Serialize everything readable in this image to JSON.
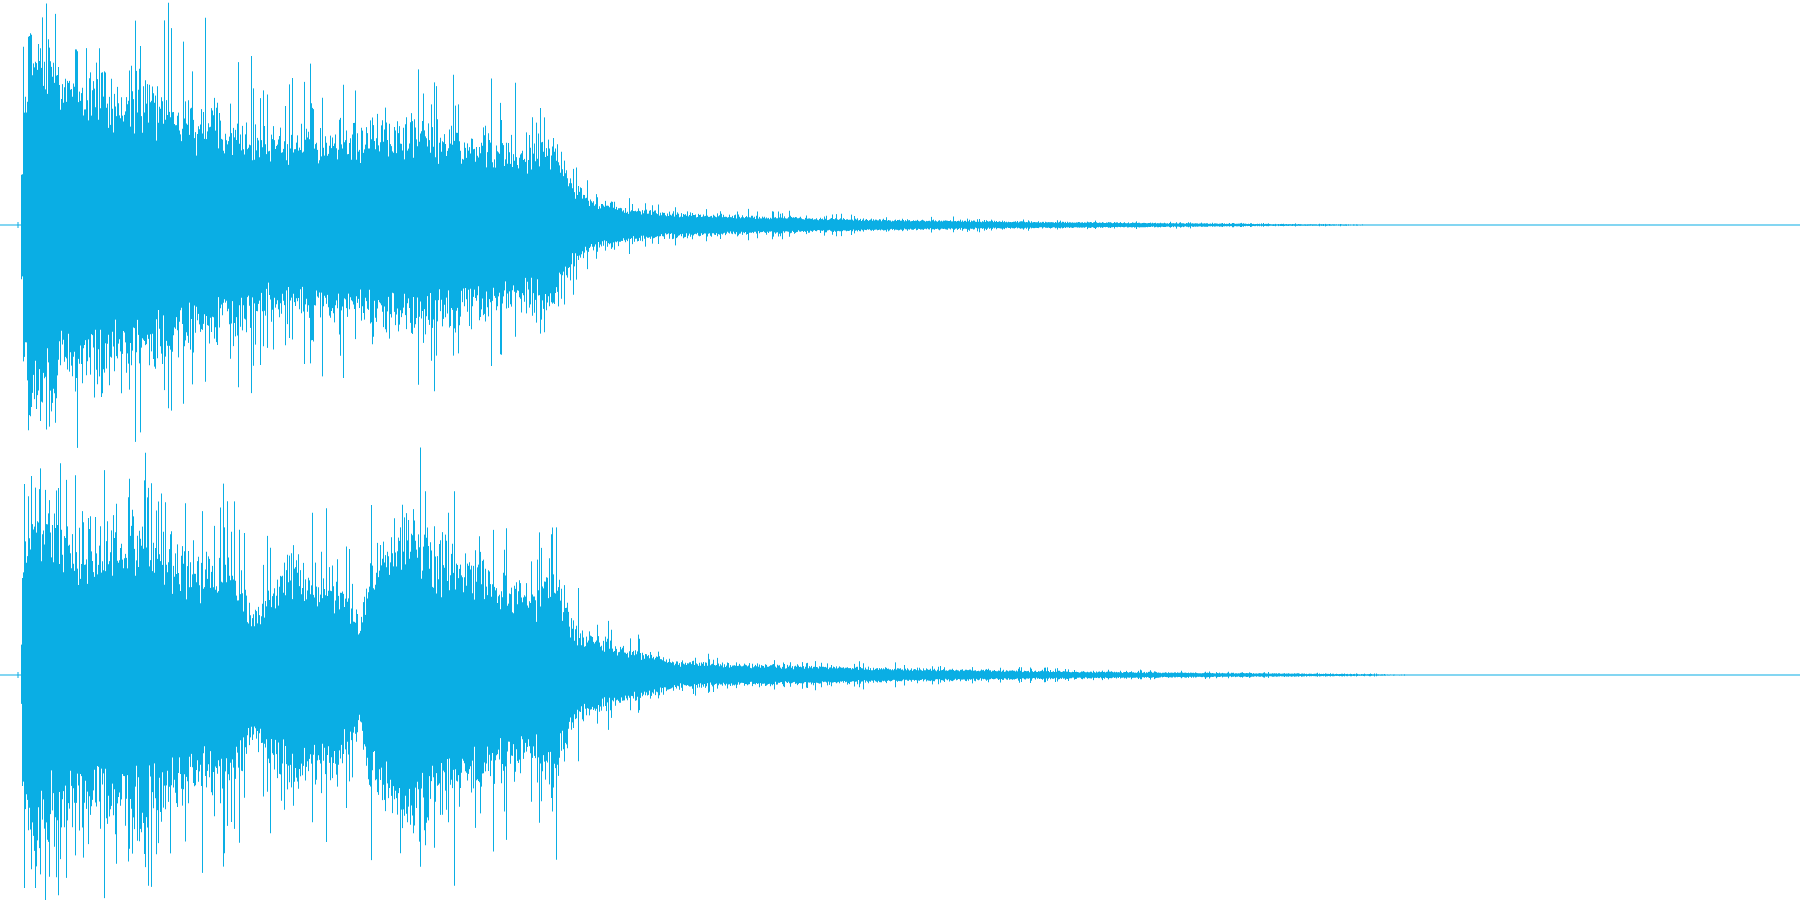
{
  "chart_data": {
    "type": "waveform",
    "title": "",
    "xlabel": "",
    "ylabel": "",
    "grid": false,
    "color": "#0aaee4",
    "background": "#ffffff",
    "xlim": [
      0,
      1
    ],
    "ylim": [
      -1,
      1
    ],
    "channels": [
      {
        "envelope_time": [
          0.0,
          0.002,
          0.006,
          0.015,
          0.03,
          0.05,
          0.07,
          0.09,
          0.11,
          0.13,
          0.15,
          0.17,
          0.19,
          0.21,
          0.23,
          0.25,
          0.27,
          0.285,
          0.3,
          0.31,
          0.32,
          0.34,
          0.36,
          0.4,
          0.45,
          0.5,
          0.55,
          0.6,
          0.65,
          0.7,
          0.75,
          0.77,
          1.0
        ],
        "envelope_amplitude": [
          0.0,
          0.55,
          0.85,
          0.8,
          0.75,
          0.7,
          0.62,
          0.55,
          0.5,
          0.45,
          0.42,
          0.42,
          0.44,
          0.46,
          0.45,
          0.42,
          0.38,
          0.38,
          0.4,
          0.2,
          0.12,
          0.08,
          0.06,
          0.045,
          0.032,
          0.024,
          0.017,
          0.013,
          0.009,
          0.005,
          0.003,
          0.0,
          0.0
        ],
        "peak_amplitude": 0.98
      },
      {
        "envelope_time": [
          0.0,
          0.002,
          0.006,
          0.015,
          0.03,
          0.05,
          0.07,
          0.09,
          0.11,
          0.12,
          0.13,
          0.15,
          0.17,
          0.18,
          0.19,
          0.2,
          0.21,
          0.22,
          0.23,
          0.25,
          0.27,
          0.29,
          0.3,
          0.31,
          0.33,
          0.35,
          0.37,
          0.4,
          0.45,
          0.5,
          0.55,
          0.6,
          0.65,
          0.7,
          0.75,
          0.8,
          1.0
        ],
        "envelope_amplitude": [
          0.0,
          0.6,
          0.8,
          0.7,
          0.65,
          0.68,
          0.66,
          0.55,
          0.5,
          0.52,
          0.3,
          0.48,
          0.45,
          0.42,
          0.25,
          0.55,
          0.7,
          0.72,
          0.62,
          0.5,
          0.45,
          0.38,
          0.5,
          0.22,
          0.15,
          0.1,
          0.06,
          0.05,
          0.04,
          0.03,
          0.022,
          0.016,
          0.012,
          0.008,
          0.005,
          0.0,
          0.0
        ],
        "peak_amplitude": 0.98
      }
    ]
  }
}
